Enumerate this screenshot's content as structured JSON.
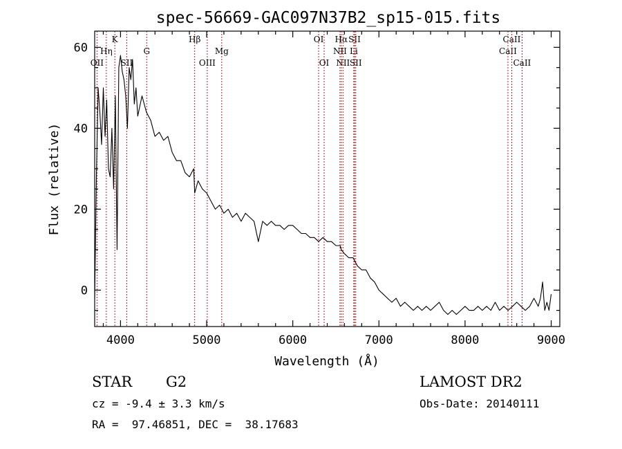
{
  "chart_data": {
    "type": "line",
    "title": "spec-56669-GAC097N37B2_sp15-015.fits",
    "xlabel": "Wavelength (Å)",
    "ylabel": "Flux (relative)",
    "xlim": [
      3700,
      9100
    ],
    "ylim": [
      -9,
      64
    ],
    "xticks": [
      4000,
      5000,
      6000,
      7000,
      8000,
      9000
    ],
    "yticks": [
      0,
      20,
      40,
      60
    ],
    "series": [
      {
        "x": [
          3700,
          3720,
          3740,
          3760,
          3780,
          3800,
          3820,
          3840,
          3860,
          3880,
          3900,
          3920,
          3940,
          3960,
          3980,
          4000,
          4020,
          4040,
          4060,
          4080,
          4100,
          4120,
          4140,
          4160,
          4180,
          4200,
          4250,
          4300,
          4350,
          4400,
          4450,
          4500,
          4550,
          4600,
          4650,
          4700,
          4750,
          4800,
          4850,
          4861,
          4900,
          4950,
          5000,
          5050,
          5100,
          5150,
          5200,
          5250,
          5300,
          5350,
          5400,
          5450,
          5500,
          5550,
          5600,
          5650,
          5700,
          5750,
          5800,
          5850,
          5900,
          5950,
          6000,
          6050,
          6100,
          6150,
          6200,
          6250,
          6300,
          6350,
          6400,
          6450,
          6500,
          6550,
          6563,
          6600,
          6650,
          6700,
          6750,
          6800,
          6850,
          6900,
          6950,
          7000,
          7050,
          7100,
          7150,
          7200,
          7250,
          7300,
          7350,
          7400,
          7450,
          7500,
          7550,
          7600,
          7650,
          7700,
          7750,
          7800,
          7850,
          7900,
          7950,
          8000,
          8050,
          8100,
          8150,
          8200,
          8250,
          8300,
          8350,
          8400,
          8450,
          8500,
          8550,
          8600,
          8650,
          8700,
          8750,
          8800,
          8825,
          8850,
          8875,
          8900,
          8925,
          8950,
          8975,
          9000
        ],
        "y": [
          -2,
          28,
          50,
          44,
          36,
          50,
          38,
          47,
          30,
          28,
          40,
          25,
          48,
          10,
          55,
          58,
          54,
          52,
          48,
          40,
          55,
          52,
          57,
          46,
          50,
          43,
          48,
          44,
          42,
          38,
          39,
          37,
          38,
          34,
          32,
          32,
          29,
          28,
          30,
          24,
          27,
          25,
          24,
          22,
          20,
          21,
          19,
          20,
          18,
          19,
          17,
          19,
          18,
          17,
          12,
          17,
          16,
          17,
          16,
          16,
          15,
          16,
          16,
          15,
          14,
          14,
          13,
          13,
          12,
          13,
          12,
          12,
          11,
          11,
          10,
          9,
          8,
          8,
          6,
          5,
          5,
          3,
          2,
          0,
          -1,
          -2,
          -3,
          -2,
          -4,
          -3,
          -4,
          -5,
          -4,
          -5,
          -4,
          -5,
          -4,
          -3,
          -5,
          -6,
          -5,
          -6,
          -5,
          -4,
          -5,
          -5,
          -4,
          -5,
          -4,
          -5,
          -3,
          -5,
          -4,
          -5,
          -4,
          -3,
          -4,
          -5,
          -4,
          -2,
          -3,
          -4,
          -2,
          2,
          -5,
          -3,
          -5,
          -1
        ]
      }
    ],
    "line_markers": [
      {
        "label": "OII",
        "wavelength": 3727,
        "row": 3
      },
      {
        "label": "Hη",
        "wavelength": 3835,
        "row": 2
      },
      {
        "label": "K",
        "wavelength": 3934,
        "row": 1
      },
      {
        "label": "SII",
        "wavelength": 4072,
        "row": 3
      },
      {
        "label": "G",
        "wavelength": 4304,
        "row": 2
      },
      {
        "label": "Hβ",
        "wavelength": 4861,
        "row": 1
      },
      {
        "label": "OIII",
        "wavelength": 5007,
        "row": 3
      },
      {
        "label": "Mg",
        "wavelength": 5175,
        "row": 2
      },
      {
        "label": "OI",
        "wavelength": 6300,
        "row": 1
      },
      {
        "label": "OI",
        "wavelength": 6364,
        "row": 3
      },
      {
        "label": "NII",
        "wavelength": 6548,
        "row": 2
      },
      {
        "label": "NII",
        "wavelength": 6583,
        "row": 3
      },
      {
        "label": "Hα",
        "wavelength": 6563,
        "row": 1
      },
      {
        "label": "Li",
        "wavelength": 6708,
        "row": 2
      },
      {
        "label": "SII",
        "wavelength": 6717,
        "row": 1
      },
      {
        "label": "SII",
        "wavelength": 6731,
        "row": 3
      },
      {
        "label": "CaII",
        "wavelength": 8498,
        "row": 2
      },
      {
        "label": "CaII",
        "wavelength": 8542,
        "row": 1
      },
      {
        "label": "CaII",
        "wavelength": 8662,
        "row": 3
      }
    ],
    "grid": false,
    "colors": {
      "spectrum": "#000000",
      "line_markers": "#b22222"
    }
  },
  "info": {
    "object_class": "STAR",
    "subclass": "G2",
    "survey": "LAMOST DR2",
    "redshift": "cz = -9.4 ± 3.3 km/s",
    "obs_date": "Obs-Date: 20140111",
    "coords": "RA =  97.46851, DEC =  38.17683"
  }
}
